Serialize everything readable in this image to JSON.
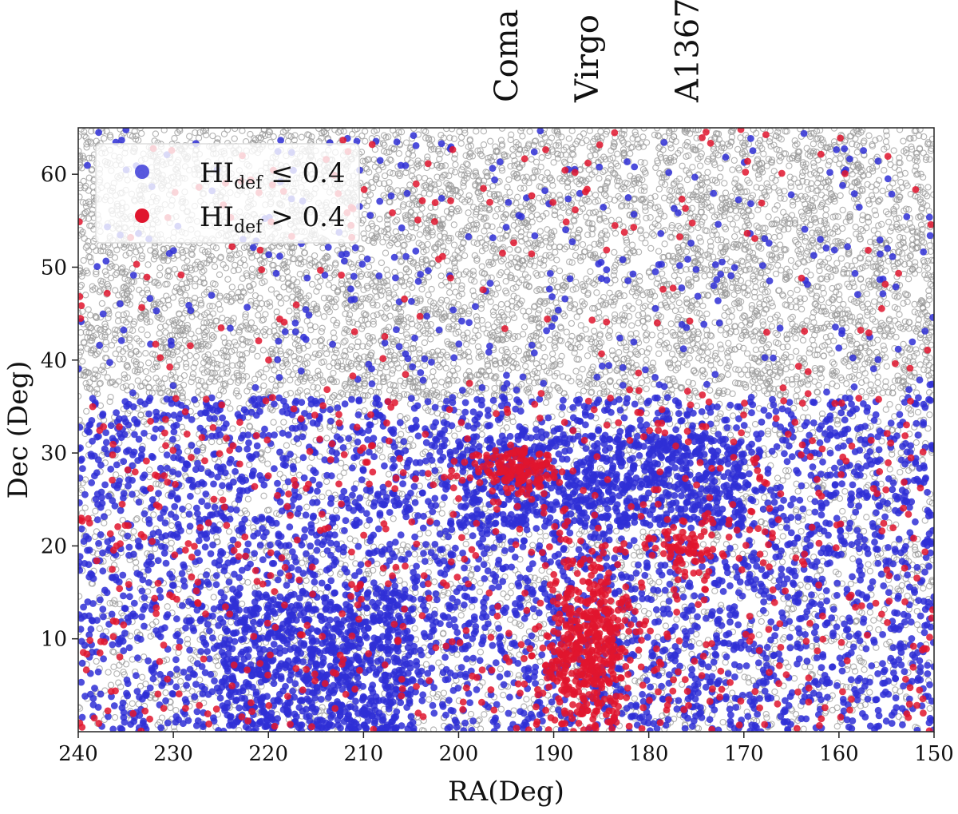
{
  "chart_data": {
    "type": "scatter",
    "title": "",
    "xlabel": "RA(Deg)",
    "ylabel": "Dec (Deg)",
    "xlim": [
      240,
      150
    ],
    "ylim": [
      0,
      65
    ],
    "x_reversed": true,
    "xticks": [
      240,
      230,
      220,
      210,
      200,
      190,
      180,
      170,
      160,
      150
    ],
    "yticks": [
      10,
      20,
      30,
      40,
      50,
      60
    ],
    "grid": false,
    "legend_placement": "top-left",
    "series": [
      {
        "name": "HI_def <= 0.4",
        "label_main": "HI",
        "label_sub": "def",
        "label_rest": " ≤ 0.4",
        "color": "#2f2fd6",
        "marker": "filled-circle",
        "approx_count": 5200,
        "concentrations": [
          {
            "ra_range": [
              150,
              240
            ],
            "dec_range": [
              0,
              36
            ],
            "weight": 0.7
          },
          {
            "ra_range": [
              150,
              240
            ],
            "dec_range": [
              36,
              65
            ],
            "weight": 0.06
          },
          {
            "ra_range": [
              170,
              200
            ],
            "dec_range": [
              22,
              32
            ],
            "weight": 0.12
          },
          {
            "ra_range": [
              205,
              225
            ],
            "dec_range": [
              0,
              15
            ],
            "weight": 0.12
          }
        ]
      },
      {
        "name": "HI_def > 0.4",
        "label_main": "HI",
        "label_sub": "def",
        "label_rest": " > 0.4",
        "color": "#e0152e",
        "marker": "filled-circle",
        "approx_count": 1500,
        "concentrations": [
          {
            "ra_center": 186.5,
            "dec_center": 9,
            "sigma": [
              2.5,
              5
            ],
            "weight": 0.32,
            "label": "Virgo"
          },
          {
            "ra_center": 194,
            "dec_center": 28,
            "sigma": [
              2.2,
              1.3
            ],
            "weight": 0.1,
            "label": "Coma"
          },
          {
            "ra_center": 176,
            "dec_center": 20,
            "sigma": [
              2,
              1.5
            ],
            "weight": 0.05,
            "label": "A1367"
          },
          {
            "ra_range": [
              150,
              240
            ],
            "dec_range": [
              0,
              36
            ],
            "weight": 0.43
          },
          {
            "ra_range": [
              150,
              240
            ],
            "dec_range": [
              36,
              65
            ],
            "weight": 0.1
          }
        ]
      },
      {
        "name": "all galaxies",
        "color": "#9a9a9a",
        "marker": "open-circle",
        "approx_count": 9000,
        "concentrations": [
          {
            "ra_range": [
              150,
              240
            ],
            "dec_range": [
              36,
              65
            ],
            "weight": 0.7
          },
          {
            "ra_range": [
              150,
              240
            ],
            "dec_range": [
              0,
              36
            ],
            "weight": 0.3
          }
        ]
      }
    ],
    "annotations": [
      {
        "text": "Coma",
        "ra": 195,
        "orientation": "vertical"
      },
      {
        "text": "Virgo",
        "ra": 186.5,
        "orientation": "vertical"
      },
      {
        "text": "A1367",
        "ra": 176,
        "orientation": "vertical"
      }
    ]
  }
}
